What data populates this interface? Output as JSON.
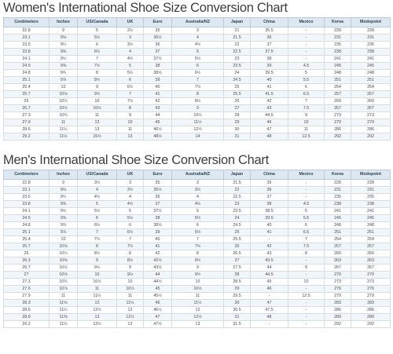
{
  "women": {
    "title": "Women's International Shoe Size Conversion Chart",
    "columns": [
      "Centimeters",
      "Inches",
      "US/Canada",
      "UK",
      "Euro",
      "Australia/NZ",
      "Japan",
      "China",
      "Mexico",
      "Korea",
      "Modopoint"
    ],
    "rows": [
      [
        "22.8",
        "9",
        "5",
        "2½",
        "35",
        "3",
        "21",
        "35.5",
        "-",
        "228",
        "228"
      ],
      [
        "23.1",
        "9⅛",
        "5½",
        "3",
        "35½",
        "4",
        "21.5",
        "36",
        "-",
        "231",
        "231"
      ],
      [
        "23.5",
        "9¼",
        "6",
        "3½",
        "36",
        "4½",
        "22",
        "37",
        "-",
        "235",
        "235"
      ],
      [
        "23.8",
        "9⅜",
        "6½",
        "4",
        "37",
        "5",
        "22.5",
        "37.5",
        "-",
        "238",
        "238"
      ],
      [
        "24.1",
        "9½",
        "7",
        "4½",
        "37½",
        "5½",
        "23",
        "38",
        "-",
        "241",
        "241"
      ],
      [
        "24.5",
        "9⅝",
        "7½",
        "5",
        "38",
        "6",
        "23.5",
        "39",
        "4.5",
        "245",
        "245"
      ],
      [
        "24.8",
        "9¾",
        "8",
        "5½",
        "38½",
        "6½",
        "24",
        "39.5",
        "5",
        "248",
        "248"
      ],
      [
        "25.1",
        "9⅞",
        "8½",
        "6",
        "39",
        "7",
        "24.5",
        "40",
        "5.5",
        "251",
        "251"
      ],
      [
        "25.4",
        "10",
        "9",
        "6½",
        "40",
        "7½",
        "25",
        "41",
        "6",
        "254",
        "254"
      ],
      [
        "25.7",
        "10⅛",
        "9½",
        "7",
        "41",
        "8",
        "25.5",
        "41.5",
        "6.5",
        "257",
        "257"
      ],
      [
        "26",
        "10¼",
        "10",
        "7½",
        "42",
        "8½",
        "26",
        "42",
        "7",
        "260",
        "260"
      ],
      [
        "26.7",
        "10½",
        "10½",
        "8",
        "43",
        "9",
        "27",
        "43",
        "7.5",
        "267",
        "267"
      ],
      [
        "27.3",
        "10¾",
        "11",
        "9",
        "44",
        "10½",
        "28",
        "44.5",
        "9",
        "273",
        "273"
      ],
      [
        "27.9",
        "11",
        "12",
        "10",
        "45",
        "11½",
        "29",
        "46",
        "10",
        "279",
        "279"
      ],
      [
        "28.6",
        "11¼",
        "13",
        "11",
        "46½",
        "12½",
        "30",
        "47",
        "11",
        "286",
        "286"
      ],
      [
        "29.2",
        "11½",
        "15½",
        "13",
        "48½",
        "14",
        "31",
        "48",
        "12.5",
        "292",
        "292"
      ]
    ]
  },
  "men": {
    "title": "Men's International Shoe Size Conversion Chart",
    "columns": [
      "Centimeters",
      "Inches",
      "US/Canada",
      "UK",
      "Euro",
      "Australia/NZ",
      "Japan",
      "China",
      "Mexico",
      "Korea",
      "Modopoint"
    ],
    "rows": [
      [
        "22.8",
        "9",
        "3½",
        "3",
        "35",
        "3",
        "21.5",
        "35",
        "-",
        "228",
        "228"
      ],
      [
        "23.1",
        "9⅛",
        "4",
        "3½",
        "35½",
        "3½",
        "22",
        "36",
        "-",
        "231",
        "231"
      ],
      [
        "23.5",
        "9¼",
        "4½",
        "4",
        "36",
        "4",
        "22.5",
        "37",
        "-",
        "235",
        "235"
      ],
      [
        "23.8",
        "9⅜",
        "5",
        "4½",
        "37",
        "4½",
        "23",
        "38",
        "4.5",
        "238",
        "238"
      ],
      [
        "24.1",
        "9½",
        "5½",
        "5",
        "37½",
        "5",
        "23.5",
        "38.5",
        "5",
        "241",
        "241"
      ],
      [
        "24.5",
        "9⅝",
        "6",
        "5½",
        "38",
        "5½",
        "24",
        "39.5",
        "5.5",
        "245",
        "245"
      ],
      [
        "24.8",
        "9¾",
        "6½",
        "6",
        "38½",
        "6",
        "24.5",
        "40",
        "6",
        "248",
        "248"
      ],
      [
        "25.1",
        "9⅞",
        "7",
        "6½",
        "39",
        "6½",
        "25",
        "41",
        "6.5",
        "251",
        "251"
      ],
      [
        "25.4",
        "10",
        "7½",
        "7",
        "40",
        "7",
        "25.5",
        "-",
        "7",
        "254",
        "254"
      ],
      [
        "25.7",
        "10⅛",
        "8",
        "7½",
        "41",
        "7½",
        "26",
        "42",
        "7.5",
        "257",
        "257"
      ],
      [
        "26",
        "10¼",
        "8½",
        "8",
        "42",
        "8",
        "26.5",
        "43",
        "8",
        "260",
        "260"
      ],
      [
        "26.3",
        "10⅜",
        "9",
        "8½",
        "42½",
        "8½",
        "27",
        "43.5",
        "-",
        "263",
        "263"
      ],
      [
        "26.7",
        "10½",
        "9½",
        "9",
        "43½",
        "9",
        "27.5",
        "44",
        "9",
        "267",
        "267"
      ],
      [
        "27",
        "10⅝",
        "10",
        "9½",
        "44",
        "9½",
        "28",
        "44.5",
        "-",
        "270",
        "270"
      ],
      [
        "27.3",
        "10¾",
        "10½",
        "10",
        "44½",
        "10",
        "28.5",
        "45",
        "10",
        "273",
        "273"
      ],
      [
        "27.6",
        "10⅞",
        "11",
        "10½",
        "45",
        "10½",
        "29",
        "46",
        "-",
        "276",
        "276"
      ],
      [
        "27.9",
        "11",
        "11½",
        "11",
        "45½",
        "11",
        "29.5",
        "-",
        "12.5",
        "279",
        "279"
      ],
      [
        "28.3",
        "11⅛",
        "12",
        "11½",
        "46",
        "11½",
        "30",
        "47",
        "-",
        "283",
        "283"
      ],
      [
        "28.6",
        "11¼",
        "12½",
        "12",
        "46½",
        "12",
        "30.5",
        "47.5",
        "-",
        "286",
        "286"
      ],
      [
        "28.9",
        "11⅜",
        "13",
        "12½",
        "47",
        "12½",
        "31",
        "48",
        "-",
        "289",
        "289"
      ],
      [
        "29.2",
        "11½",
        "13½",
        "13",
        "47½",
        "13",
        "31.5",
        "-",
        "-",
        "292",
        "292"
      ]
    ]
  }
}
